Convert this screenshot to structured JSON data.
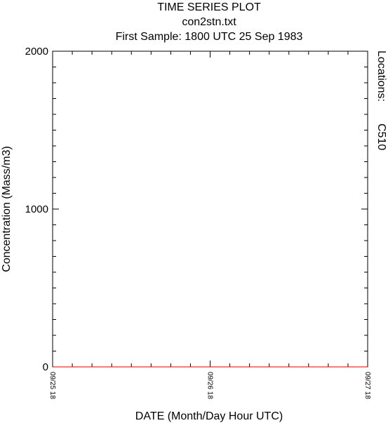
{
  "chart_data": {
    "type": "line",
    "title": "TIME SERIES PLOT",
    "subtitle_file": "con2stn.txt",
    "subtitle_sample": "First Sample: 1800 UTC 25 Sep 1983",
    "xlabel": "DATE (Month/Day Hour UTC)",
    "ylabel": "Concentration (Mass/m3)",
    "legend_title": "Locations:",
    "legend_placement": "right",
    "x_unit": "hours after 1800 UTC 25 Sep 1983",
    "xlim": [
      0,
      48
    ],
    "ylim": [
      0,
      2000
    ],
    "y_ticks": [
      0,
      1000,
      2000
    ],
    "y_tick_labels": [
      "0",
      "1000",
      "2000"
    ],
    "x_tick_positions": [
      0,
      24,
      48
    ],
    "x_tick_labels": [
      "09/25 18",
      "09/26 18",
      "09/27 18"
    ],
    "x_minor_step": 3,
    "y_minor_step": 100,
    "series": [
      {
        "name": "",
        "color": "#000000",
        "x": [
          0,
          12,
          15,
          18,
          21,
          24,
          27,
          30,
          33,
          36,
          42,
          45,
          48,
          54,
          60,
          72
        ],
        "y": [
          0,
          0,
          0,
          0,
          0,
          0,
          0,
          0,
          0,
          0,
          0,
          0,
          0,
          0,
          0,
          0
        ]
      },
      {
        "name": "C510",
        "color": "#dd0000",
        "x": [
          0,
          12,
          15,
          18,
          21,
          24,
          27,
          30,
          33,
          36,
          42,
          45,
          48,
          54,
          60,
          72
        ],
        "y": [
          0,
          0,
          0,
          0,
          0,
          0,
          0,
          0,
          0,
          0,
          0,
          0,
          0,
          0,
          0,
          0
        ]
      }
    ]
  }
}
